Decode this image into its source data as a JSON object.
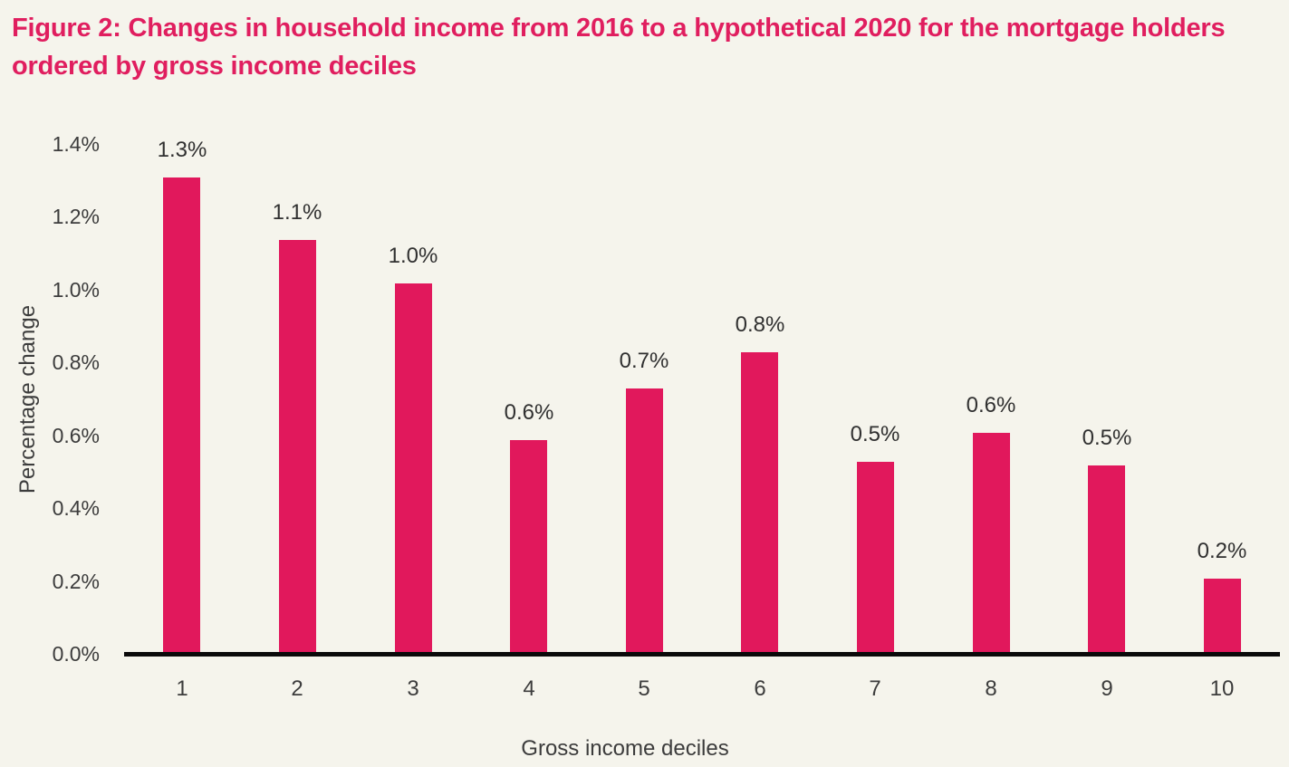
{
  "figure": {
    "title": "Figure 2: Changes in household income from 2016 to a hypothetical 2020 for the mortgage holders ordered by gross income deciles"
  },
  "chart_data": {
    "type": "bar",
    "title": "Figure 2: Changes in household income from 2016 to a hypothetical 2020 for the mortgage holders ordered by gross income deciles",
    "categories": [
      "1",
      "2",
      "3",
      "4",
      "5",
      "6",
      "7",
      "8",
      "9",
      "10"
    ],
    "values": [
      1.3,
      1.1,
      1.0,
      0.6,
      0.7,
      0.8,
      0.5,
      0.6,
      0.5,
      0.2
    ],
    "bar_heights_pct": [
      1.31,
      1.14,
      1.02,
      0.59,
      0.73,
      0.83,
      0.53,
      0.61,
      0.52,
      0.21
    ],
    "data_labels": [
      "1.3%",
      "1.1%",
      "1.0%",
      "0.6%",
      "0.7%",
      "0.8%",
      "0.5%",
      "0.6%",
      "0.5%",
      "0.2%"
    ],
    "xlabel": "Gross income deciles",
    "ylabel": "Percentage change",
    "ylim": [
      0,
      1.4
    ],
    "ytick_step": 0.2,
    "ytick_labels": [
      "0.0%",
      "0.2%",
      "0.4%",
      "0.6%",
      "0.8%",
      "1.0%",
      "1.2%",
      "1.4%"
    ],
    "grid": false,
    "legend": "none",
    "colors": {
      "bar": "#e1185c",
      "title": "#e01e5f",
      "text": "#3c3c3c",
      "data_label_text": "#303030",
      "axis_line": "#0a0a0a",
      "background": "#f5f4ec"
    }
  }
}
